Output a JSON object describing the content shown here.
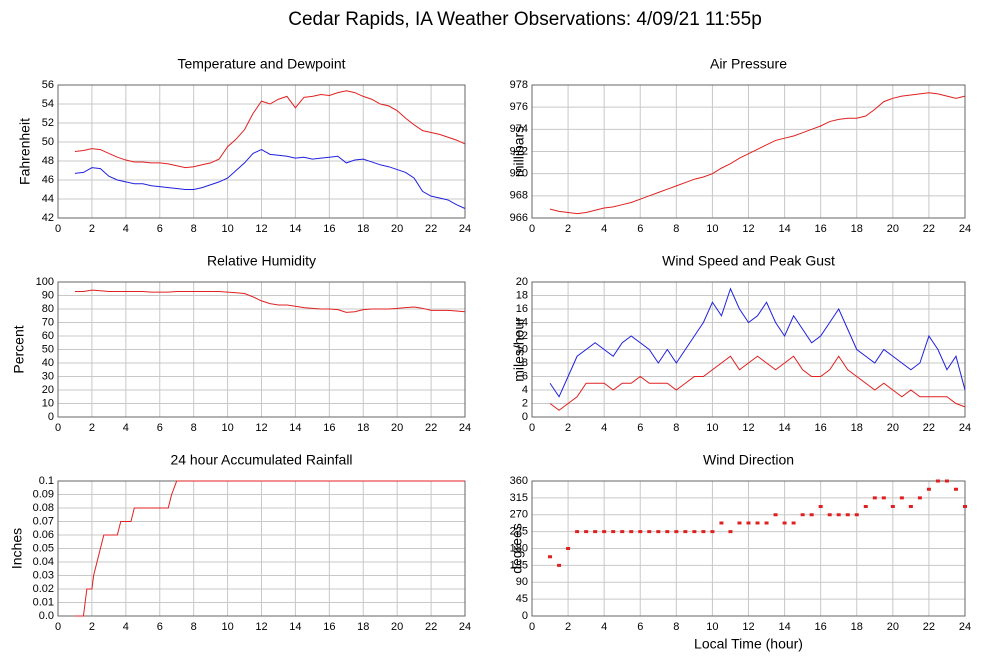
{
  "title": "Cedar Rapids, IA Weather Observations: 4/09/21 11:55p",
  "chart_data": [
    {
      "type": "line",
      "title": "Temperature and Dewpoint",
      "y_label": "Fahrenheit",
      "x": [
        1,
        1.5,
        2,
        2.5,
        3,
        3.5,
        4,
        4.5,
        5,
        5.5,
        6,
        6.5,
        7,
        7.5,
        8,
        8.5,
        9,
        9.5,
        10,
        10.5,
        11,
        11.5,
        12,
        12.5,
        13,
        13.5,
        14,
        14.5,
        15,
        15.5,
        16,
        16.5,
        17,
        17.5,
        18,
        18.5,
        19,
        19.5,
        20,
        20.5,
        21,
        21.5,
        22,
        22.5,
        23,
        23.5,
        24
      ],
      "series": [
        {
          "color": "#e02020",
          "values": [
            49,
            49.1,
            49.3,
            49.2,
            48.8,
            48.4,
            48.1,
            47.9,
            47.9,
            47.8,
            47.8,
            47.7,
            47.5,
            47.3,
            47.4,
            47.6,
            47.8,
            48.2,
            49.5,
            50.3,
            51.3,
            53,
            54.3,
            54,
            54.5,
            54.8,
            53.6,
            54.7,
            54.8,
            55,
            54.9,
            55.2,
            55.4,
            55.2,
            54.8,
            54.5,
            54,
            53.8,
            53.3,
            52.5,
            51.8,
            51.2,
            51,
            50.8,
            50.5,
            50.2,
            49.8
          ]
        },
        {
          "color": "#2020e0",
          "values": [
            46.7,
            46.8,
            47.3,
            47.2,
            46.4,
            46,
            45.8,
            45.6,
            45.6,
            45.4,
            45.3,
            45.2,
            45.1,
            45,
            45,
            45.2,
            45.5,
            45.8,
            46.2,
            47,
            47.8,
            48.8,
            49.2,
            48.7,
            48.6,
            48.5,
            48.3,
            48.4,
            48.2,
            48.3,
            48.4,
            48.5,
            47.8,
            48.1,
            48.2,
            47.9,
            47.6,
            47.4,
            47.1,
            46.8,
            46.2,
            44.8,
            44.3,
            44.1,
            43.9,
            43.4,
            43
          ]
        }
      ],
      "xlim": [
        0,
        24
      ],
      "xticks": [
        0,
        2,
        4,
        6,
        8,
        10,
        12,
        14,
        16,
        18,
        20,
        22,
        24
      ],
      "ylim": [
        42,
        56
      ],
      "yticks": [
        42,
        44,
        46,
        48,
        50,
        52,
        54,
        56
      ],
      "grid": true
    },
    {
      "type": "line",
      "title": "Air Pressure",
      "y_label": "millibars",
      "x": [
        1,
        1.5,
        2,
        2.5,
        3,
        3.5,
        4,
        4.5,
        5,
        5.5,
        6,
        6.5,
        7,
        7.5,
        8,
        8.5,
        9,
        9.5,
        10,
        10.5,
        11,
        11.5,
        12,
        12.5,
        13,
        13.5,
        14,
        14.5,
        15,
        15.5,
        16,
        16.5,
        17,
        17.5,
        18,
        18.5,
        19,
        19.5,
        20,
        20.5,
        21,
        21.5,
        22,
        22.5,
        23,
        23.5,
        24
      ],
      "series": [
        {
          "color": "#e02020",
          "values": [
            966.8,
            966.6,
            966.5,
            966.4,
            966.5,
            966.7,
            966.9,
            967,
            967.2,
            967.4,
            967.7,
            968,
            968.3,
            968.6,
            968.9,
            969.2,
            969.5,
            969.7,
            970,
            970.5,
            970.9,
            971.4,
            971.8,
            972.2,
            972.6,
            973,
            973.2,
            973.4,
            973.7,
            974,
            974.3,
            974.7,
            974.9,
            975,
            975,
            975.2,
            975.8,
            976.5,
            976.8,
            977,
            977.1,
            977.2,
            977.3,
            977.2,
            977,
            976.8,
            977
          ]
        }
      ],
      "xlim": [
        0,
        24
      ],
      "xticks": [
        0,
        2,
        4,
        6,
        8,
        10,
        12,
        14,
        16,
        18,
        20,
        22,
        24
      ],
      "ylim": [
        966,
        978
      ],
      "yticks": [
        966,
        968,
        970,
        972,
        974,
        976,
        978
      ],
      "grid": true
    },
    {
      "type": "line",
      "title": "Relative Humidity",
      "y_label": "Percent",
      "x": [
        1,
        1.5,
        2,
        2.5,
        3,
        3.5,
        4,
        4.5,
        5,
        5.5,
        6,
        6.5,
        7,
        7.5,
        8,
        8.5,
        9,
        9.5,
        10,
        10.5,
        11,
        11.5,
        12,
        12.5,
        13,
        13.5,
        14,
        14.5,
        15,
        15.5,
        16,
        16.5,
        17,
        17.5,
        18,
        18.5,
        19,
        19.5,
        20,
        20.5,
        21,
        21.5,
        22,
        22.5,
        23,
        23.5,
        24
      ],
      "series": [
        {
          "color": "#e02020",
          "values": [
            93,
            93,
            94,
            93.5,
            93,
            93,
            93,
            93,
            93,
            92.5,
            92.5,
            92.5,
            93,
            93,
            93,
            93,
            93,
            93,
            92.5,
            92,
            91.5,
            89,
            86,
            84,
            83,
            83,
            82,
            81,
            80.5,
            80,
            80,
            79.5,
            77.5,
            78,
            79.5,
            80,
            80,
            80,
            80.5,
            81,
            81.5,
            80.5,
            79,
            79,
            79,
            78.5,
            78
          ]
        }
      ],
      "xlim": [
        0,
        24
      ],
      "xticks": [
        0,
        2,
        4,
        6,
        8,
        10,
        12,
        14,
        16,
        18,
        20,
        22,
        24
      ],
      "ylim": [
        0,
        100
      ],
      "yticks": [
        0,
        10,
        20,
        30,
        40,
        50,
        60,
        70,
        80,
        90,
        100
      ],
      "grid": true
    },
    {
      "type": "line",
      "title": "Wind Speed and Peak Gust",
      "y_label": "miles/hour",
      "x": [
        1,
        1.5,
        2,
        2.5,
        3,
        3.5,
        4,
        4.5,
        5,
        5.5,
        6,
        6.5,
        7,
        7.5,
        8,
        8.5,
        9,
        9.5,
        10,
        10.5,
        11,
        11.5,
        12,
        12.5,
        13,
        13.5,
        14,
        14.5,
        15,
        15.5,
        16,
        16.5,
        17,
        17.5,
        18,
        18.5,
        19,
        19.5,
        20,
        20.5,
        21,
        21.5,
        22,
        22.5,
        23,
        23.5,
        24
      ],
      "series": [
        {
          "color": "#e02020",
          "values": [
            2,
            1,
            2,
            3,
            5,
            5,
            5,
            4,
            5,
            5,
            6,
            5,
            5,
            5,
            4,
            5,
            6,
            6,
            7,
            8,
            9,
            7,
            8,
            9,
            8,
            7,
            8,
            9,
            7,
            6,
            6,
            7,
            9,
            7,
            6,
            5,
            4,
            5,
            4,
            3,
            4,
            3,
            3,
            3,
            3,
            2,
            1.5
          ]
        },
        {
          "color": "#2020e0",
          "values": [
            5,
            3,
            6,
            9,
            10,
            11,
            10,
            9,
            11,
            12,
            11,
            10,
            8,
            10,
            8,
            10,
            12,
            14,
            17,
            15,
            19,
            16,
            14,
            15,
            17,
            14,
            12,
            15,
            13,
            11,
            12,
            14,
            16,
            13,
            10,
            9,
            8,
            10,
            9,
            8,
            7,
            8,
            12,
            10,
            7,
            9,
            4
          ]
        }
      ],
      "xlim": [
        0,
        24
      ],
      "xticks": [
        0,
        2,
        4,
        6,
        8,
        10,
        12,
        14,
        16,
        18,
        20,
        22,
        24
      ],
      "ylim": [
        0,
        20
      ],
      "yticks": [
        0,
        2,
        4,
        6,
        8,
        10,
        12,
        14,
        16,
        18,
        20
      ],
      "grid": true
    },
    {
      "type": "line",
      "title": "24 hour Accumulated Rainfall",
      "y_label": "Inches",
      "x": [
        1,
        1.5,
        1.6,
        1.7,
        2,
        2.1,
        2.3,
        2.5,
        2.7,
        3.5,
        3.7,
        4.3,
        4.5,
        6.5,
        6.7,
        7,
        24
      ],
      "series": [
        {
          "color": "#e02020",
          "values": [
            0,
            0,
            0.01,
            0.02,
            0.02,
            0.03,
            0.04,
            0.05,
            0.06,
            0.06,
            0.07,
            0.07,
            0.08,
            0.08,
            0.09,
            0.1,
            0.1
          ]
        }
      ],
      "xlim": [
        0,
        24
      ],
      "xticks": [
        0,
        2,
        4,
        6,
        8,
        10,
        12,
        14,
        16,
        18,
        20,
        22,
        24
      ],
      "ylim": [
        0,
        0.1
      ],
      "yticks": [
        {
          "value": 0,
          "label": "0.0"
        },
        0.01,
        0.02,
        0.03,
        0.04,
        0.05,
        0.06,
        0.07,
        0.08,
        0.09,
        0.1
      ],
      "grid": true
    },
    {
      "type": "scatter",
      "title": "Wind Direction",
      "y_label": "degrees",
      "x_label": "Local Time (hour)",
      "x": [
        1,
        1.5,
        2,
        2.5,
        3,
        3.5,
        4,
        4.5,
        5,
        5.5,
        6,
        6.5,
        7,
        7.5,
        8,
        8.5,
        9,
        9.5,
        10,
        10.5,
        11,
        11.5,
        12,
        12.5,
        13,
        13.5,
        14,
        14.5,
        15,
        15.5,
        16,
        16.5,
        17,
        17.5,
        18,
        18.5,
        19,
        19.5,
        20,
        20.5,
        21,
        21.5,
        22,
        22.5,
        23,
        23.5,
        24
      ],
      "series": [
        {
          "color": "#e02020",
          "values": [
            158,
            135,
            180,
            225,
            225,
            225,
            225,
            225,
            225,
            225,
            225,
            225,
            225,
            225,
            225,
            225,
            225,
            225,
            225,
            248,
            225,
            248,
            248,
            248,
            248,
            270,
            248,
            248,
            270,
            270,
            292,
            270,
            270,
            270,
            270,
            292,
            315,
            315,
            292,
            315,
            292,
            315,
            338,
            360,
            360,
            338,
            292
          ]
        }
      ],
      "xlim": [
        0,
        24
      ],
      "xticks": [
        0,
        2,
        4,
        6,
        8,
        10,
        12,
        14,
        16,
        18,
        20,
        22,
        24
      ],
      "ylim": [
        0,
        360
      ],
      "yticks": [
        0,
        45,
        90,
        135,
        180,
        225,
        270,
        315,
        360
      ],
      "grid": true
    }
  ]
}
